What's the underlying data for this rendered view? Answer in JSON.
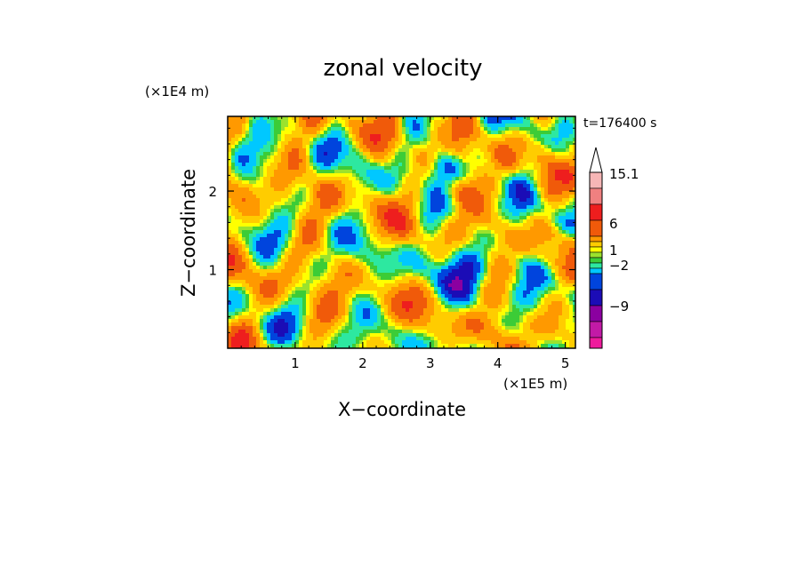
{
  "chart_data": {
    "type": "heatmap",
    "title": "zonal velocity",
    "xlabel": "X−coordinate",
    "ylabel": "Z−coordinate",
    "x_unit": "(×1E5 m)",
    "y_unit": "(×1E4 m)",
    "time_label": "t=176400 s",
    "xlim": [
      0,
      5.15
    ],
    "ylim": [
      0,
      2.95
    ],
    "x_ticks": [
      {
        "value": 1,
        "label": "1"
      },
      {
        "value": 2,
        "label": "2"
      },
      {
        "value": 3,
        "label": "3"
      },
      {
        "value": 4,
        "label": "4"
      },
      {
        "value": 5,
        "label": "5"
      }
    ],
    "y_ticks": [
      {
        "value": 1,
        "label": "1"
      },
      {
        "value": 2,
        "label": "2"
      }
    ],
    "colorbar": {
      "levels": [
        {
          "value": -12,
          "color": "#ee1a9c"
        },
        {
          "value": -10.5,
          "color": "#c21aa6"
        },
        {
          "value": -9,
          "color": "#8b00a0"
        },
        {
          "value": -6,
          "color": "#1b0cb6"
        },
        {
          "value": -4,
          "color": "#0044dd"
        },
        {
          "value": -2,
          "color": "#00c8ff"
        },
        {
          "value": -1,
          "color": "#2de8a0"
        },
        {
          "value": 0,
          "color": "#3ccc37"
        },
        {
          "value": 0.5,
          "color": "#9be22d"
        },
        {
          "value": 1,
          "color": "#ffff00"
        },
        {
          "value": 2,
          "color": "#ffcc00"
        },
        {
          "value": 4,
          "color": "#ff9900"
        },
        {
          "value": 6,
          "color": "#f05a0a"
        },
        {
          "value": 9,
          "color": "#ee1e1e"
        },
        {
          "value": 12,
          "color": "#f08080"
        },
        {
          "value": 15.1,
          "color": "#f6b6b6"
        }
      ],
      "labels": [
        "15.1",
        "6",
        "1",
        "−2",
        "−9"
      ]
    }
  }
}
